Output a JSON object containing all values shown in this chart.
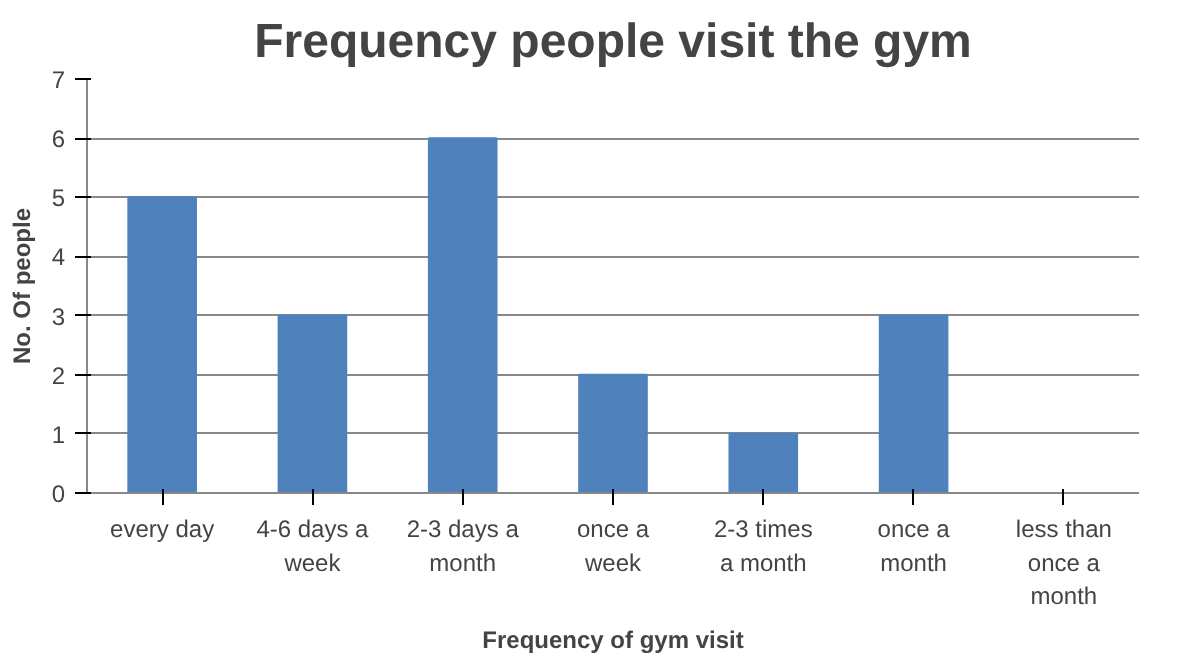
{
  "chart_data": {
    "type": "bar",
    "title": "Frequency people visit the gym",
    "xlabel": "Frequency of gym visit",
    "ylabel": "No. Of people",
    "categories": [
      "every day",
      "4-6 days a week",
      "2-3 days a month",
      "once a week",
      "2-3 times a month",
      "once a month",
      "less than once a month"
    ],
    "values": [
      5,
      3,
      6,
      2,
      1,
      3,
      0
    ],
    "color": "#4f81bd",
    "ylim": [
      0,
      7
    ],
    "yticks": [
      0,
      1,
      2,
      3,
      4,
      5,
      6,
      7
    ],
    "grid": "y"
  }
}
